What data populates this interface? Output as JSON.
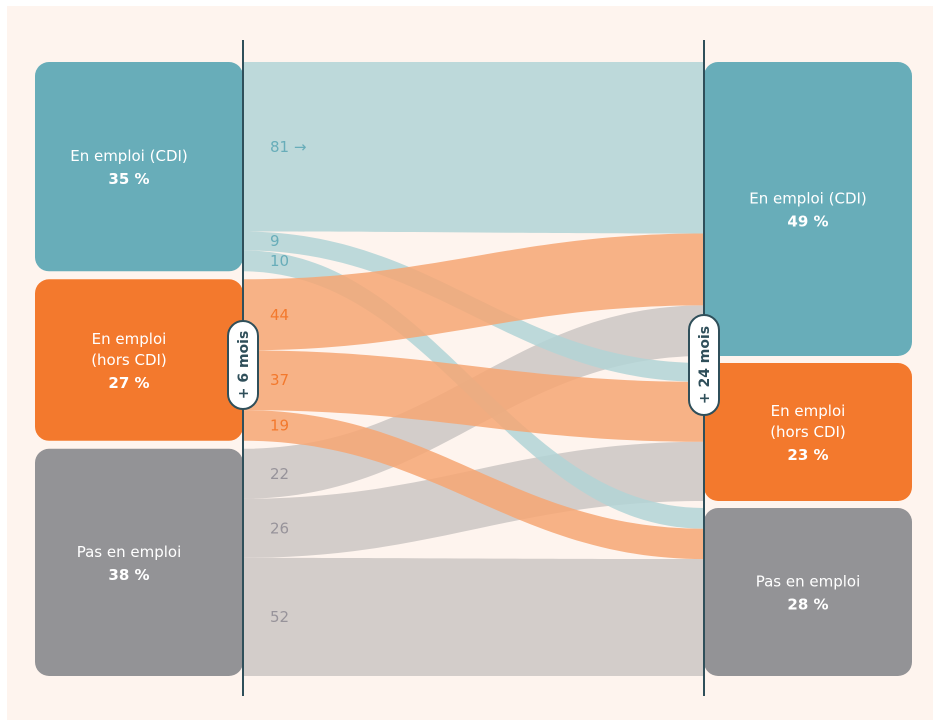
{
  "colors": {
    "background": "#fef4ee",
    "cdi": "#68adb9",
    "hors_cdi": "#f3792d",
    "pas_emploi": "#939396",
    "flow_cdi": "#b2d3d6",
    "flow_hors_cdi": "#f6a673",
    "flow_pas_emploi": "#cbc6c3",
    "label_cdi": "#68adb9",
    "label_hors_cdi": "#f3792d",
    "label_pas_emploi": "#97939a",
    "axis": "#2f4f5a"
  },
  "axis_left_label": "+ 6 mois",
  "axis_right_label": "+ 24 mois",
  "chart_data": {
    "type": "sankey",
    "nodes_left": [
      {
        "id": "cdi",
        "label_lines": [
          "En emploi (CDI)"
        ],
        "pct": "35 %",
        "value": 35
      },
      {
        "id": "hors",
        "label_lines": [
          "En emploi",
          "(hors CDI)"
        ],
        "pct": "27 %",
        "value": 27
      },
      {
        "id": "pas",
        "label_lines": [
          "Pas en emploi"
        ],
        "pct": "38 %",
        "value": 38
      }
    ],
    "nodes_right": [
      {
        "id": "cdi",
        "label_lines": [
          "En emploi (CDI)"
        ],
        "pct": "49 %",
        "value": 49
      },
      {
        "id": "hors",
        "label_lines": [
          "En emploi",
          "(hors CDI)"
        ],
        "pct": "23 %",
        "value": 23
      },
      {
        "id": "pas",
        "label_lines": [
          "Pas en emploi"
        ],
        "pct": "28 %",
        "value": 28
      }
    ],
    "flows": [
      {
        "source": "cdi",
        "target": "cdi",
        "value": 81,
        "label": "81 →"
      },
      {
        "source": "cdi",
        "target": "hors",
        "value": 9,
        "label": "9"
      },
      {
        "source": "cdi",
        "target": "pas",
        "value": 10,
        "label": "10"
      },
      {
        "source": "hors",
        "target": "cdi",
        "value": 44,
        "label": "44"
      },
      {
        "source": "hors",
        "target": "hors",
        "value": 37,
        "label": "37"
      },
      {
        "source": "hors",
        "target": "pas",
        "value": 19,
        "label": "19"
      },
      {
        "source": "pas",
        "target": "cdi",
        "value": 22,
        "label": "22"
      },
      {
        "source": "pas",
        "target": "hors",
        "value": 26,
        "label": "26"
      },
      {
        "source": "pas",
        "target": "pas",
        "value": 52,
        "label": "52"
      }
    ]
  }
}
